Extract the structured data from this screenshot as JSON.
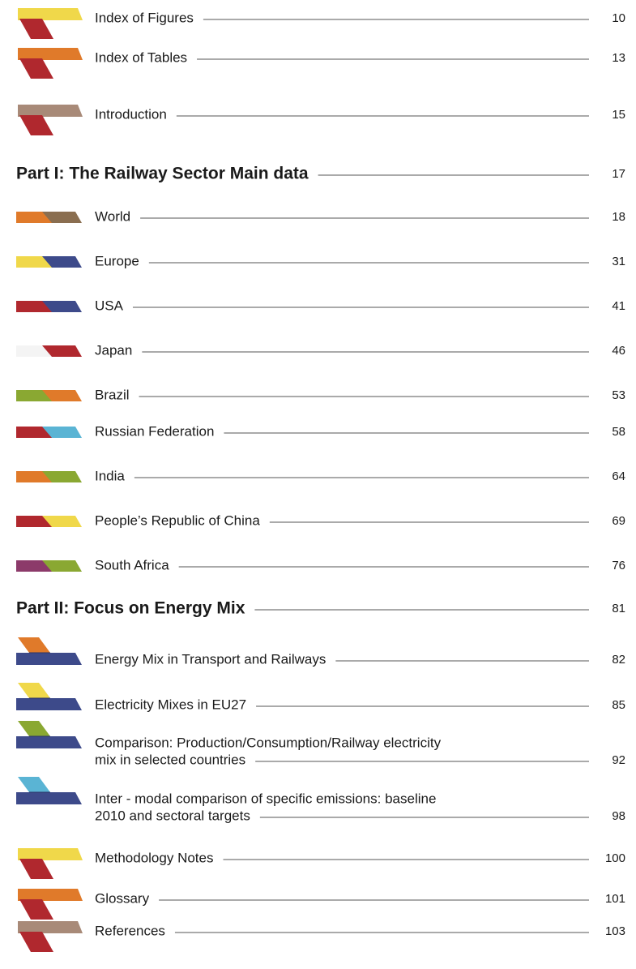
{
  "entries": [
    {
      "lines": [
        "Index of Figures"
      ],
      "page": 10
    },
    {
      "lines": [
        "Index of Tables"
      ],
      "page": 13
    },
    {
      "lines": [
        "Introduction"
      ],
      "page": 15
    },
    {
      "lines": [
        "Part I: The Railway Sector Main data"
      ],
      "page": 17
    },
    {
      "lines": [
        "World"
      ],
      "page": 18
    },
    {
      "lines": [
        "Europe"
      ],
      "page": 31
    },
    {
      "lines": [
        "USA"
      ],
      "page": 41
    },
    {
      "lines": [
        "Japan"
      ],
      "page": 46
    },
    {
      "lines": [
        "Brazil"
      ],
      "page": 53
    },
    {
      "lines": [
        "Russian Federation"
      ],
      "page": 58
    },
    {
      "lines": [
        "India"
      ],
      "page": 64
    },
    {
      "lines": [
        "People’s Republic of China"
      ],
      "page": 69
    },
    {
      "lines": [
        "South Africa"
      ],
      "page": 76
    },
    {
      "lines": [
        "Part II: Focus on Energy Mix"
      ],
      "page": 81
    },
    {
      "lines": [
        "Energy Mix in Transport and Railways"
      ],
      "page": 82
    },
    {
      "lines": [
        "Electricity Mixes in EU27"
      ],
      "page": 85
    },
    {
      "lines": [
        "Comparison: Production/Consumption/Railway electricity",
        "mix in selected countries"
      ],
      "page": 92
    },
    {
      "lines": [
        "Inter - modal comparison of specific emissions: baseline",
        "2010 and sectoral targets"
      ],
      "page": 98
    },
    {
      "lines": [
        "Methodology Notes"
      ],
      "page": 100
    },
    {
      "lines": [
        "Glossary"
      ],
      "page": 101
    },
    {
      "lines": [
        "References"
      ],
      "page": 103
    }
  ]
}
